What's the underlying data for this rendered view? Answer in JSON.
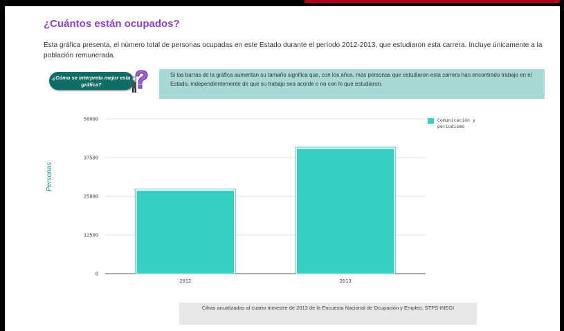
{
  "title": "¿Cuántos están ocupados?",
  "intro": "Esta gráfica presenta, el número total de personas ocupadas en este Estado durante el período 2012-2013, que estudiaron esta carrera. Incluye únicamente a la población remunerada.",
  "help_badge": {
    "text": "¿Cómo se interpreta mejor esta gráfica?",
    "icon": "question-person-icon"
  },
  "info_box": "Si las barras de la gráfica aumentan su tamaño significa que, con los años, más personas que estudiaron esta carrera han encontrado trabajo en el Estado, independientemente de que su trabajo sea acorde o no con lo que estudiaron.",
  "source": "Cifras anualizadas al cuarto trimestre de 2013 de la Encuesta Nacional de Ocupación y Empleo, STPS-INEGI",
  "colors": {
    "title": "#8e3fc7",
    "bar": "#36cfc1",
    "info_box": "#a9d9d5",
    "badge": "#0f6d67"
  },
  "chart_data": {
    "type": "bar",
    "categories": [
      "2012",
      "2013"
    ],
    "series": [
      {
        "name": "Comunicación y periodismo",
        "values": [
          27000,
          40500
        ]
      }
    ],
    "ylabel": "Personas",
    "xlabel": "",
    "ylim": [
      0,
      50000
    ],
    "yticks": [
      "50000",
      "37500",
      "25000",
      "12500",
      "0"
    ],
    "legend_position": "right",
    "grid": true
  }
}
